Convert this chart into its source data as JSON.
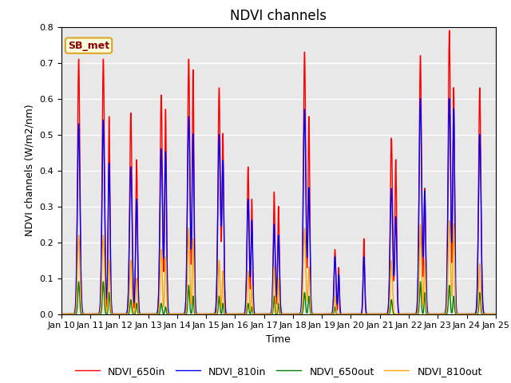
{
  "title": "NDVI channels",
  "ylabel": "NDVI channels (W/m2/nm)",
  "xlabel": "Time",
  "annotation": "SB_met",
  "legend_labels": [
    "NDVI_650in",
    "NDVI_810in",
    "NDVI_650out",
    "NDVI_810out"
  ],
  "legend_colors": [
    "red",
    "blue",
    "green",
    "orange"
  ],
  "ylim": [
    0.0,
    0.8
  ],
  "yticks": [
    0.0,
    0.1,
    0.2,
    0.3,
    0.4,
    0.5,
    0.6,
    0.7,
    0.8
  ],
  "xtick_labels": [
    "Jan 10",
    "Jan 11",
    "Jan 12",
    "Jan 13",
    "Jan 14",
    "Jan 15",
    "Jan 16",
    "Jan 17",
    "Jan 18",
    "Jan 19",
    "Jan 20",
    "Jan 21",
    "Jan 22",
    "Jan 23",
    "Jan 24",
    "Jan 25"
  ],
  "background_color": "#e8e8e8",
  "title_fontsize": 12,
  "axis_label_fontsize": 9,
  "tick_fontsize": 8,
  "line_width": 1.0
}
